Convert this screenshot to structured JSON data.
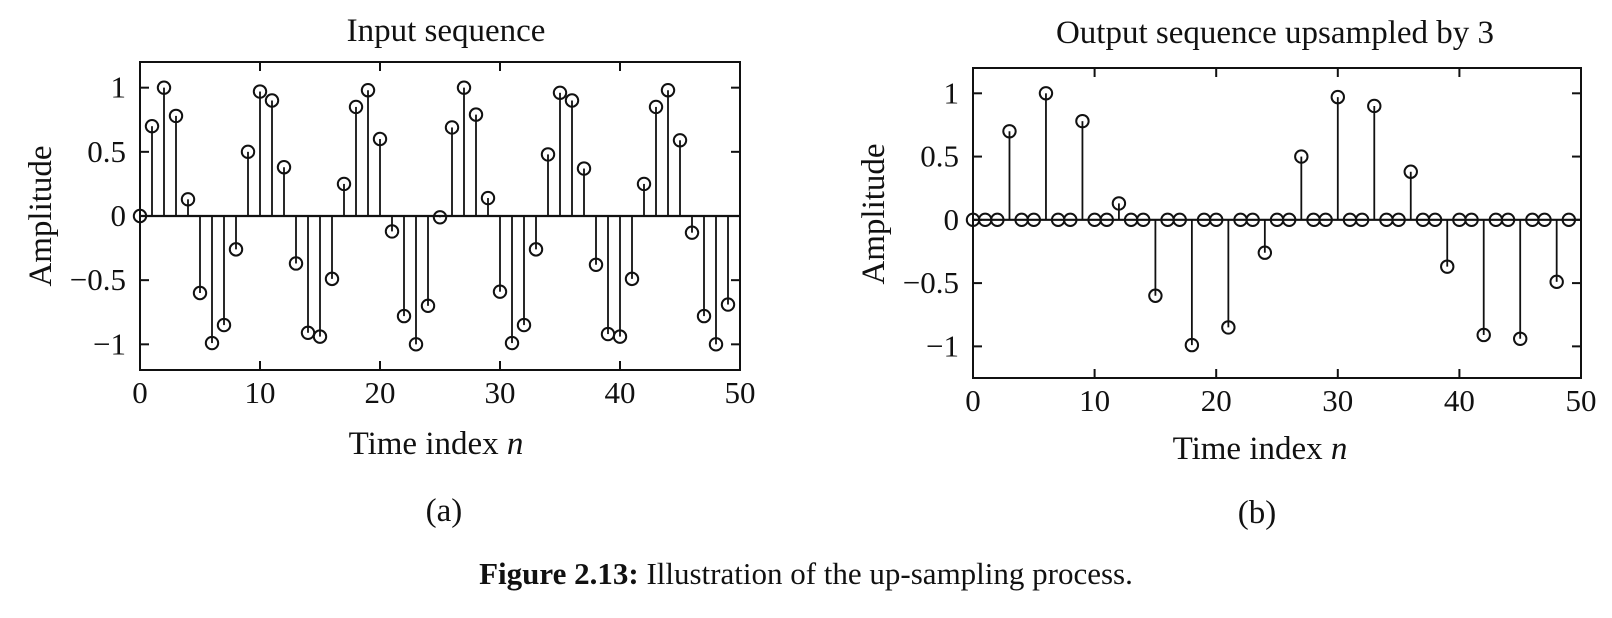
{
  "caption": {
    "label": "Figure 2.13:",
    "text": " Illustration of the up-sampling process."
  },
  "chart_data": [
    {
      "type": "stem",
      "panel_label": "(a)",
      "title": "Input sequence",
      "xlabel": "Time index",
      "xlabel_italic": "n",
      "ylabel": "Amplitude",
      "xlim": [
        0,
        50
      ],
      "ylim": [
        -1.2,
        1.2
      ],
      "xticks": [
        0,
        10,
        20,
        30,
        40,
        50
      ],
      "yticks": [
        -1,
        -0.5,
        0,
        0.5,
        1
      ],
      "ytick_labels": [
        "−1",
        "−0.5",
        "0",
        "0.5",
        "1"
      ],
      "grid": false,
      "x": [
        0,
        1,
        2,
        3,
        4,
        5,
        6,
        7,
        8,
        9,
        10,
        11,
        12,
        13,
        14,
        15,
        16,
        17,
        18,
        19,
        20,
        21,
        22,
        23,
        24,
        25,
        26,
        27,
        28,
        29,
        30,
        31,
        32,
        33,
        34,
        35,
        36,
        37,
        38,
        39,
        40,
        41,
        42,
        43,
        44,
        45,
        46,
        47,
        48,
        49
      ],
      "values": [
        0,
        0.7,
        1.0,
        0.78,
        0.13,
        -0.6,
        -0.99,
        -0.85,
        -0.26,
        0.5,
        0.97,
        0.9,
        0.38,
        -0.37,
        -0.91,
        -0.94,
        -0.49,
        0.25,
        0.85,
        0.98,
        0.6,
        -0.12,
        -0.78,
        -1.0,
        -0.7,
        -0.01,
        0.69,
        1.0,
        0.79,
        0.14,
        -0.59,
        -0.99,
        -0.85,
        -0.26,
        0.48,
        0.96,
        0.9,
        0.37,
        -0.38,
        -0.92,
        -0.94,
        -0.49,
        0.25,
        0.85,
        0.98,
        0.59,
        -0.13,
        -0.78,
        -1.0,
        -0.69
      ]
    },
    {
      "type": "stem",
      "panel_label": "(b)",
      "title": "Output sequence upsampled by 3",
      "xlabel": "Time index",
      "xlabel_italic": "n",
      "ylabel": "Amplitude",
      "xlim": [
        0,
        50
      ],
      "ylim": [
        -1.25,
        1.2
      ],
      "xticks": [
        0,
        10,
        20,
        30,
        40,
        50
      ],
      "yticks": [
        -1,
        -0.5,
        0,
        0.5,
        1
      ],
      "ytick_labels": [
        "−1",
        "−0.5",
        "0",
        "0.5",
        "1"
      ],
      "grid": false,
      "x": [
        0,
        1,
        2,
        3,
        4,
        5,
        6,
        7,
        8,
        9,
        10,
        11,
        12,
        13,
        14,
        15,
        16,
        17,
        18,
        19,
        20,
        21,
        22,
        23,
        24,
        25,
        26,
        27,
        28,
        29,
        30,
        31,
        32,
        33,
        34,
        35,
        36,
        37,
        38,
        39,
        40,
        41,
        42,
        43,
        44,
        45,
        46,
        47,
        48,
        49
      ],
      "values": [
        0,
        0,
        0,
        0.7,
        0,
        0,
        1.0,
        0,
        0,
        0.78,
        0,
        0,
        0.13,
        0,
        0,
        -0.6,
        0,
        0,
        -0.99,
        0,
        0,
        -0.85,
        0,
        0,
        -0.26,
        0,
        0,
        0.5,
        0,
        0,
        0.97,
        0,
        0,
        0.9,
        0,
        0,
        0.38,
        0,
        0,
        -0.37,
        0,
        0,
        -0.91,
        0,
        0,
        -0.94,
        0,
        0,
        -0.49,
        0
      ]
    }
  ]
}
